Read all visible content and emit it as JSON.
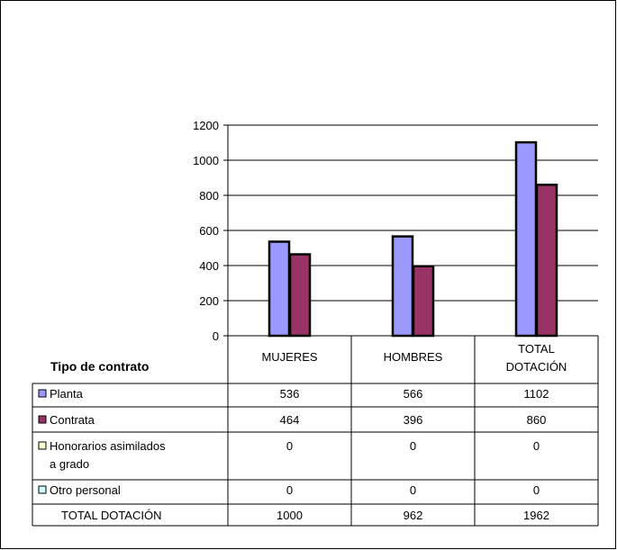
{
  "chart_data": {
    "type": "bar",
    "categories": [
      "MUJERES",
      "HOMBRES",
      "TOTAL DOTACIÓN"
    ],
    "category_lines": [
      [
        "MUJERES"
      ],
      [
        "HOMBRES"
      ],
      [
        "TOTAL",
        "DOTACIÓN"
      ]
    ],
    "series": [
      {
        "name": "Planta",
        "values": [
          536,
          566,
          1102
        ],
        "color": "#9999ff",
        "plotted": true
      },
      {
        "name": "Contrata",
        "values": [
          464,
          396,
          860
        ],
        "color": "#993366",
        "plotted": true
      },
      {
        "name": "Honorarios asimilados a grado",
        "name_lines": [
          "Honorarios asimilados",
          "a grado"
        ],
        "values": [
          0,
          0,
          0
        ],
        "color": "#ffffcc",
        "plotted": false
      },
      {
        "name": "Otro personal",
        "values": [
          0,
          0,
          0
        ],
        "color": "#ccffff",
        "plotted": false
      }
    ],
    "total_row": {
      "label": "TOTAL DOTACIÓN",
      "values": [
        1000,
        962,
        1962
      ]
    },
    "table_title": "Tipo de contrato",
    "y_ticks": [
      0,
      200,
      400,
      600,
      800,
      1000,
      1200
    ],
    "ylim": [
      0,
      1200
    ],
    "grid": true,
    "legend": "data-table"
  }
}
